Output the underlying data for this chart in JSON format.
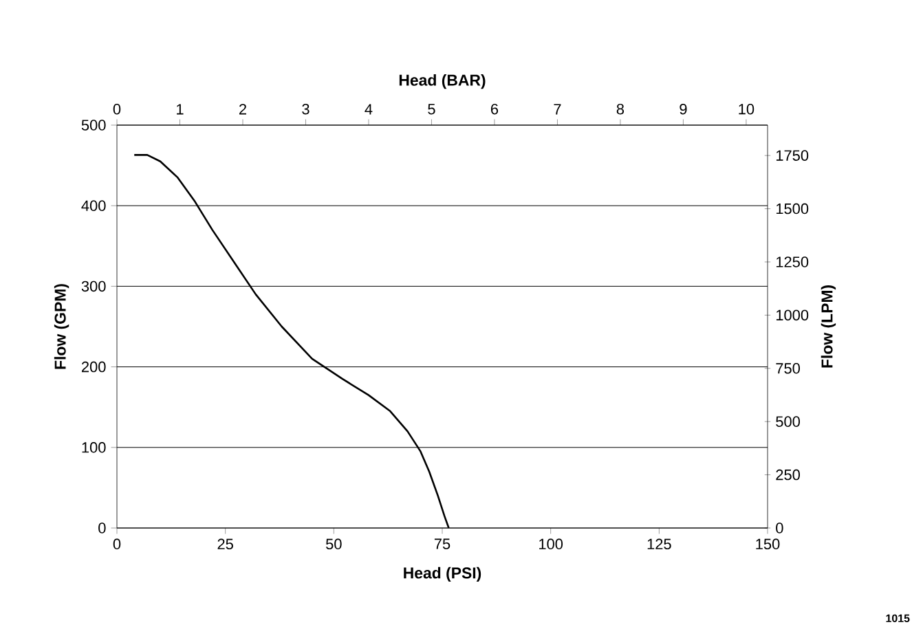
{
  "chart_data": {
    "type": "line",
    "x": [
      4,
      7,
      10,
      14,
      18,
      22,
      27,
      32,
      38,
      45,
      52,
      58,
      63,
      67,
      70,
      72,
      74,
      75.5,
      76.5
    ],
    "values": [
      463,
      463,
      455,
      435,
      405,
      370,
      330,
      290,
      250,
      210,
      185,
      165,
      145,
      120,
      95,
      70,
      40,
      15,
      0
    ],
    "color": "#000000",
    "line_style": "solid",
    "xlabel": "Head (PSI)",
    "ylabel": "Flow (GPM)",
    "x2label": "Head (BAR)",
    "y2label": "Flow (LPM)",
    "xlim": [
      0,
      150
    ],
    "xticks": [
      0,
      25,
      50,
      75,
      100,
      125,
      150
    ],
    "ylim": [
      0,
      500
    ],
    "yticks": [
      0,
      100,
      200,
      300,
      400,
      500
    ],
    "x2lim": [
      0,
      10.34
    ],
    "x2ticks": [
      0,
      1,
      2,
      3,
      4,
      5,
      6,
      7,
      8,
      9,
      10
    ],
    "y2lim": [
      0,
      1892.7
    ],
    "y2ticks": [
      0,
      250,
      500,
      750,
      1000,
      1250,
      1500,
      1750
    ],
    "grid": "y",
    "annotations": [
      "1015"
    ]
  }
}
